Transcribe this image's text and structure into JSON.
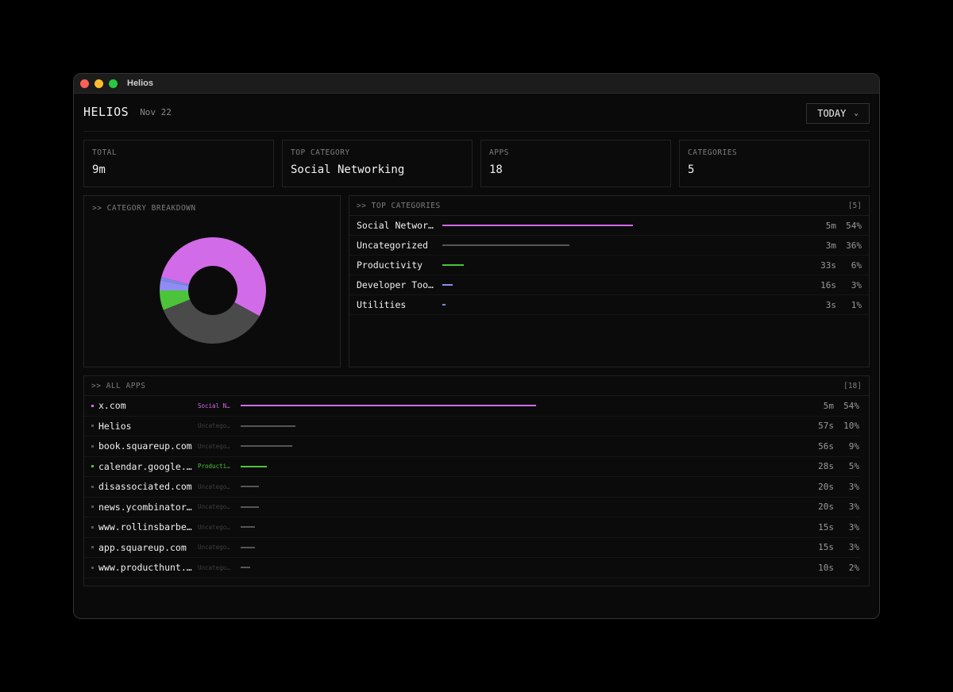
{
  "window": {
    "title": "Helios"
  },
  "header": {
    "brand": "HELIOS",
    "date": "Nov 22",
    "range_label": "TODAY"
  },
  "stats": [
    {
      "label": "TOTAL",
      "value": "9m"
    },
    {
      "label": "TOP CATEGORY",
      "value": "Social Networking"
    },
    {
      "label": "APPS",
      "value": "18"
    },
    {
      "label": "CATEGORIES",
      "value": "5"
    }
  ],
  "breakdown": {
    "title": ">> CATEGORY BREAKDOWN"
  },
  "top_categories": {
    "title": ">> TOP CATEGORIES",
    "count": "[5]",
    "items": [
      {
        "name": "Social Networ…",
        "time": "5m",
        "pct": "54%",
        "fraction": 0.54,
        "color": "#d26be8"
      },
      {
        "name": "Uncategorized",
        "time": "3m",
        "pct": "36%",
        "fraction": 0.36,
        "color": "#555555"
      },
      {
        "name": "Productivity",
        "time": "33s",
        "pct": "6%",
        "fraction": 0.06,
        "color": "#4cc43a"
      },
      {
        "name": "Developer Too…",
        "time": "16s",
        "pct": "3%",
        "fraction": 0.03,
        "color": "#8f8cf5"
      },
      {
        "name": "Utilities",
        "time": "3s",
        "pct": "1%",
        "fraction": 0.01,
        "color": "#7a88e6"
      }
    ]
  },
  "all_apps": {
    "title": ">> ALL APPS",
    "count": "[18]",
    "items": [
      {
        "name": "x.com",
        "category": "Social N…",
        "time": "5m",
        "pct": "54%",
        "fraction": 0.54,
        "color": "#d26be8"
      },
      {
        "name": "Helios",
        "category": "Uncatego…",
        "time": "57s",
        "pct": "10%",
        "fraction": 0.1,
        "color": "#555555"
      },
      {
        "name": "book.squareup.com",
        "category": "Uncatego…",
        "time": "56s",
        "pct": "9%",
        "fraction": 0.095,
        "color": "#555555"
      },
      {
        "name": "calendar.google.…",
        "category": "Producti…",
        "time": "28s",
        "pct": "5%",
        "fraction": 0.048,
        "color": "#4cc43a"
      },
      {
        "name": "disassociated.com",
        "category": "Uncatego…",
        "time": "20s",
        "pct": "3%",
        "fraction": 0.034,
        "color": "#555555"
      },
      {
        "name": "news.ycombinator…",
        "category": "Uncatego…",
        "time": "20s",
        "pct": "3%",
        "fraction": 0.034,
        "color": "#555555"
      },
      {
        "name": "www.rollinsbarbe…",
        "category": "Uncatego…",
        "time": "15s",
        "pct": "3%",
        "fraction": 0.026,
        "color": "#555555"
      },
      {
        "name": "app.squareup.com",
        "category": "Uncatego…",
        "time": "15s",
        "pct": "3%",
        "fraction": 0.026,
        "color": "#555555"
      },
      {
        "name": "www.producthunt.…",
        "category": "Uncatego…",
        "time": "10s",
        "pct": "2%",
        "fraction": 0.017,
        "color": "#555555"
      }
    ]
  },
  "colors": {
    "social": "#d26be8",
    "uncategorized": "#555555",
    "productivity": "#4cc43a",
    "developer": "#8f8cf5",
    "utilities": "#7a88e6"
  }
}
